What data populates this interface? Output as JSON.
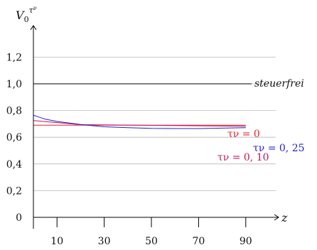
{
  "chart_data": {
    "type": "line",
    "title": "",
    "xlabel": "z",
    "ylabel_base": "V",
    "ylabel_sub": "0",
    "ylabel_sup": "τ",
    "ylabel_supsup": "ν",
    "xlim": [
      0,
      100
    ],
    "ylim": [
      0,
      1.4
    ],
    "x_ticks": [
      10,
      30,
      50,
      70,
      90
    ],
    "x_tick_labels": [
      "10",
      "30",
      "50",
      "70",
      "90"
    ],
    "y_ticks": [
      0,
      0.2,
      0.4,
      0.6,
      0.8,
      1.0,
      1.2
    ],
    "y_tick_labels": [
      "0",
      "0,2",
      "0,4",
      "0,6",
      "0,8",
      "1,0",
      "1,2"
    ],
    "grid": "horizontal",
    "series": [
      {
        "name": "steuerfrei",
        "color": "#000000",
        "x": [
          0,
          90
        ],
        "y": [
          1.0,
          1.0
        ]
      },
      {
        "name": "τν = 0",
        "color": "#e8202a",
        "x": [
          0,
          90
        ],
        "y": [
          0.69,
          0.69
        ]
      },
      {
        "name": "τν = 0,10",
        "color": "#c0185a",
        "x": [
          0,
          20,
          90
        ],
        "y": [
          0.725,
          0.694,
          0.682
        ]
      },
      {
        "name": "τν = 0,25",
        "color": "#2020d0",
        "x": [
          0,
          5,
          10,
          20,
          30,
          40,
          50,
          60,
          70,
          80,
          90
        ],
        "y": [
          0.765,
          0.735,
          0.718,
          0.695,
          0.678,
          0.672,
          0.666,
          0.665,
          0.665,
          0.668,
          0.672
        ]
      }
    ],
    "annotations": [
      {
        "series": "steuerfrei",
        "text": "steuerfrei",
        "italic": true
      },
      {
        "series": "τν = 0",
        "text": "τν = 0"
      },
      {
        "series": "τν = 0,25",
        "text": "τν = 0, 25"
      },
      {
        "series": "τν = 0,10",
        "text": "τν = 0, 10"
      }
    ]
  }
}
